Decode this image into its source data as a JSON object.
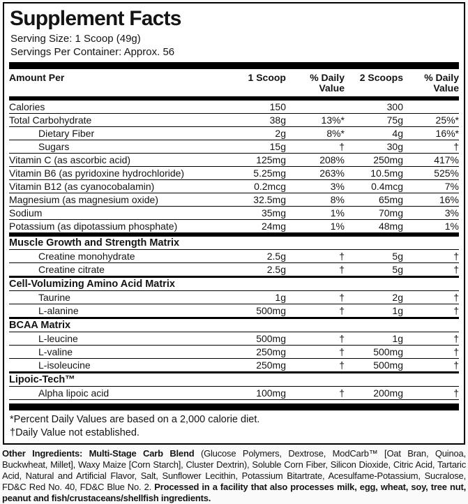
{
  "label": {
    "title": "Supplement Facts",
    "serving_size": "Serving Size: 1 Scoop (49g)",
    "servings_per_container": "Servings Per Container: Approx. 56",
    "columns": {
      "amount_per": "Amount Per",
      "scoop1": "1 Scoop",
      "dv1": "% Daily Value",
      "scoop2": "2 Scoops",
      "dv2": "% Daily Value"
    },
    "rows": [
      {
        "type": "item",
        "name": "Calories",
        "a1": "150",
        "dv1": "",
        "a2": "300",
        "dv2": ""
      },
      {
        "type": "item",
        "name": "Total Carbohydrate",
        "a1": "38g",
        "dv1": "13%*",
        "a2": "75g",
        "dv2": "25%*"
      },
      {
        "type": "subitem",
        "name": "Dietary Fiber",
        "a1": "2g",
        "dv1": "8%*",
        "a2": "4g",
        "dv2": "16%*"
      },
      {
        "type": "subitem",
        "name": "Sugars",
        "a1": "15g",
        "dv1": "†",
        "a2": "30g",
        "dv2": "†"
      },
      {
        "type": "item",
        "name": "Vitamin C (as ascorbic acid)",
        "a1": "125mg",
        "dv1": "208%",
        "a2": "250mg",
        "dv2": "417%"
      },
      {
        "type": "item",
        "name": "Vitamin B6 (as pyridoxine hydrochloride)",
        "a1": "5.25mg",
        "dv1": "263%",
        "a2": "10.5mg",
        "dv2": "525%"
      },
      {
        "type": "item",
        "name": "Vitamin B12 (as cyanocobalamin)",
        "a1": "0.2mcg",
        "dv1": "3%",
        "a2": "0.4mcg",
        "dv2": "7%"
      },
      {
        "type": "item",
        "name": "Magnesium (as magnesium oxide)",
        "a1": "32.5mg",
        "dv1": "8%",
        "a2": "65mg",
        "dv2": "16%"
      },
      {
        "type": "item",
        "name": "Sodium",
        "a1": "35mg",
        "dv1": "1%",
        "a2": "70mg",
        "dv2": "3%"
      },
      {
        "type": "item",
        "name": "Potassium (as dipotassium phosphate)",
        "a1": "24mg",
        "dv1": "1%",
        "a2": "48mg",
        "dv2": "1%",
        "bar_after": true
      },
      {
        "type": "section",
        "name": "Muscle Growth and Strength Matrix",
        "a1": "",
        "dv1": "",
        "a2": "",
        "dv2": ""
      },
      {
        "type": "subitem",
        "name": "Creatine monohydrate",
        "a1": "2.5g",
        "dv1": "†",
        "a2": "5g",
        "dv2": "†"
      },
      {
        "type": "subitem",
        "name": "Creatine citrate",
        "a1": "2.5g",
        "dv1": "†",
        "a2": "5g",
        "dv2": "†"
      },
      {
        "type": "section",
        "name": "Cell-Volumizing Amino Acid Matrix",
        "a1": "",
        "dv1": "",
        "a2": "",
        "dv2": ""
      },
      {
        "type": "subitem",
        "name": "Taurine",
        "a1": "1g",
        "dv1": "†",
        "a2": "2g",
        "dv2": "†"
      },
      {
        "type": "subitem",
        "name": "L-alanine",
        "a1": "500mg",
        "dv1": "†",
        "a2": "1g",
        "dv2": "†"
      },
      {
        "type": "section",
        "name": "BCAA Matrix",
        "a1": "",
        "dv1": "",
        "a2": "",
        "dv2": ""
      },
      {
        "type": "subitem",
        "name": "L-leucine",
        "a1": "500mg",
        "dv1": "†",
        "a2": "1g",
        "dv2": "†"
      },
      {
        "type": "subitem",
        "name": "L-valine",
        "a1": "250mg",
        "dv1": "†",
        "a2": "500mg",
        "dv2": "†"
      },
      {
        "type": "subitem",
        "name": "L-isoleucine",
        "a1": "250mg",
        "dv1": "†",
        "a2": "500mg",
        "dv2": "†"
      },
      {
        "type": "section",
        "name": "Lipoic-Tech™",
        "a1": "",
        "dv1": "",
        "a2": "",
        "dv2": ""
      },
      {
        "type": "subitem",
        "name": "Alpha lipoic acid",
        "a1": "100mg",
        "dv1": "†",
        "a2": "200mg",
        "dv2": "†"
      }
    ],
    "footnotes": [
      "*Percent Daily Values are based on a 2,000 calorie diet.",
      "†Daily Value not established."
    ]
  },
  "other_ingredients": {
    "segments": [
      {
        "text": "Other Ingredients: Multi-Stage Carb Blend ",
        "bold": true
      },
      {
        "text": "(Glucose Polymers, Dextrose, ModCarb™ [Oat Bran, Quinoa, Buckwheat, Millet], Waxy Maize [Corn Starch], Cluster Dextrin), Soluble Corn Fiber, Silicon Dioxide, Citric Acid, Tartaric Acid, Natural and Artificial Flavor, Salt, Sunflower Lecithin, Potassium Bitartrate, Acesulfame-Potassium, Sucralose, FD&C Red No. 40, FD&C Blue No. 2. ",
        "bold": false
      },
      {
        "text": "Processed in a facility that also processes milk, egg, wheat, soy, tree nut, peanut and fish/crustaceans/shellfish ingredients.",
        "bold": true
      }
    ]
  },
  "colors": {
    "ink": "#141414",
    "bar": "#000000",
    "background": "#ffffff"
  }
}
